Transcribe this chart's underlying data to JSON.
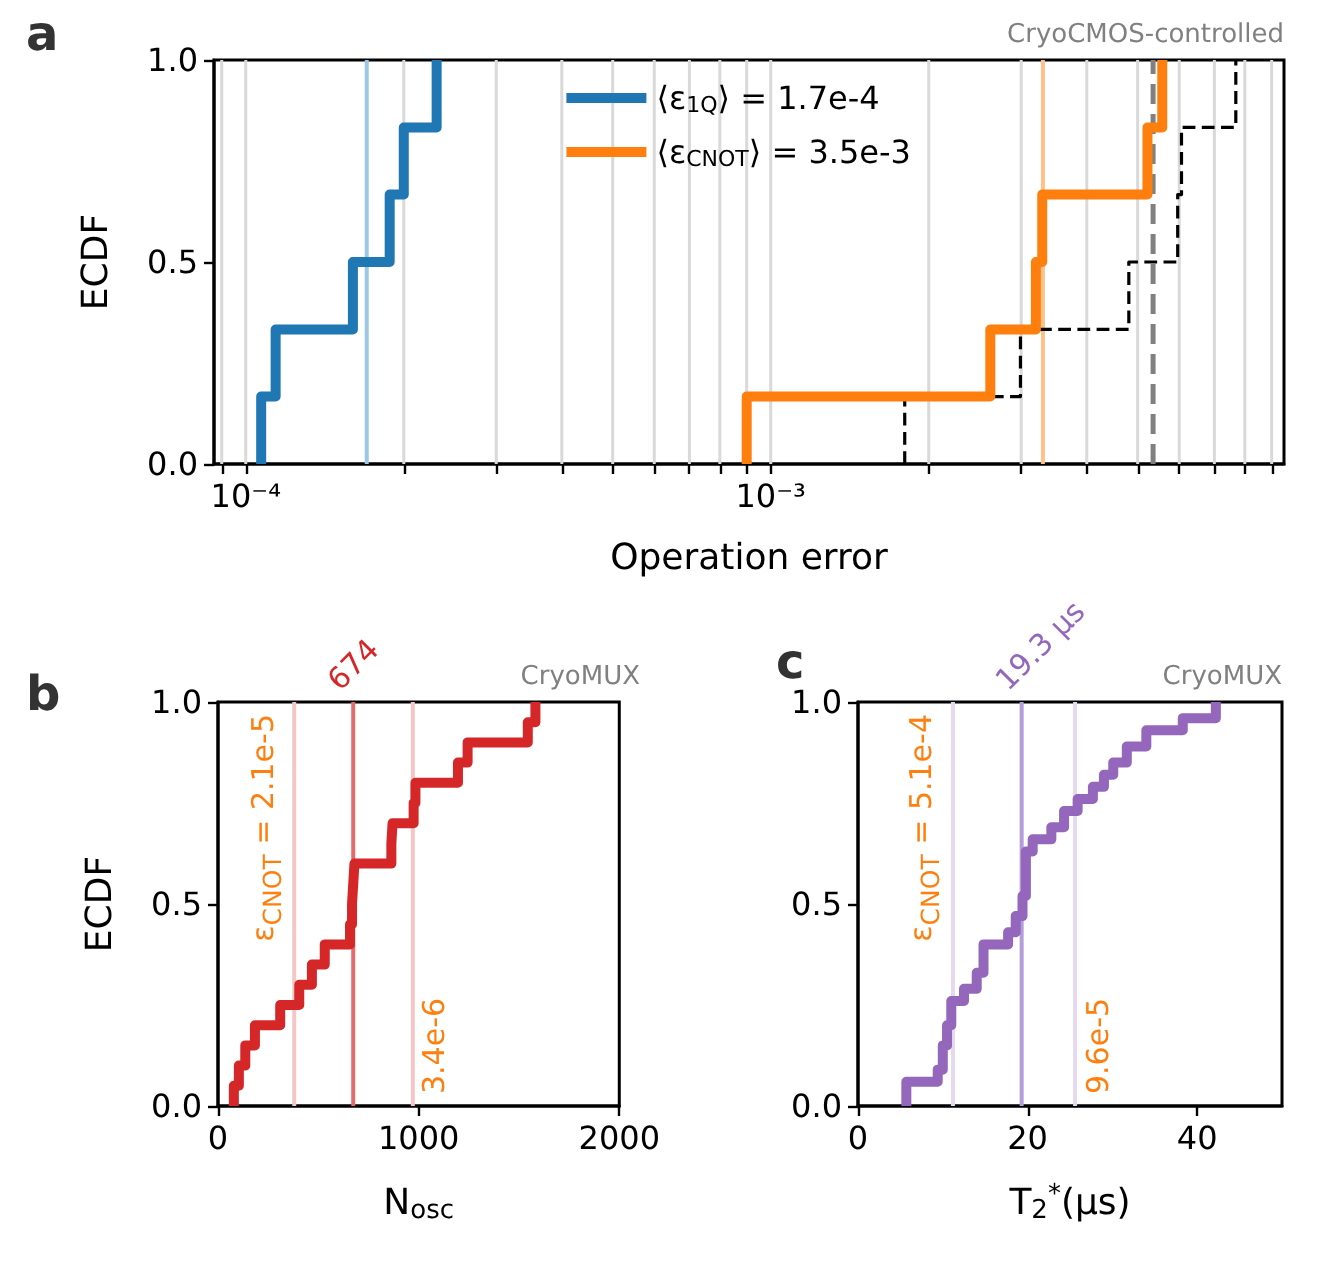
{
  "chart_data": [
    {
      "type": "step",
      "title": "a",
      "xlabel": "Operation error",
      "ylabel": "ECDF",
      "annotations": [
        "CryoCMOS-controlled"
      ],
      "log": "x",
      "xlim": [
        8.7e-05,
        0.0095
      ],
      "xticks": [
        {
          "value": 9e-05,
          "label": null
        },
        {
          "value": 0.0001,
          "label": "10⁻⁴"
        },
        {
          "value": 0.0002,
          "label": null
        },
        {
          "value": 0.0003,
          "label": null
        },
        {
          "value": 0.0004,
          "label": null
        },
        {
          "value": 0.0005,
          "label": null
        },
        {
          "value": 0.0006,
          "label": null
        },
        {
          "value": 0.0007,
          "label": null
        },
        {
          "value": 0.0008,
          "label": null
        },
        {
          "value": 0.0009,
          "label": null
        },
        {
          "value": 0.001,
          "label": "10⁻³"
        },
        {
          "value": 0.002,
          "label": null
        },
        {
          "value": 0.003,
          "label": null
        },
        {
          "value": 0.004,
          "label": null
        },
        {
          "value": 0.005,
          "label": null
        },
        {
          "value": 0.006,
          "label": null
        },
        {
          "value": 0.007,
          "label": null
        },
        {
          "value": 0.008,
          "label": null
        },
        {
          "value": 0.009,
          "label": null
        }
      ],
      "ylim": [
        0,
        1
      ],
      "yticks": [
        {
          "value": 0,
          "label": "0.0"
        },
        {
          "value": 0.5,
          "label": "0.5"
        },
        {
          "value": 1,
          "label": "1.0"
        }
      ],
      "grid": "x",
      "legend": "top",
      "marker": "none",
      "series": [
        {
          "name": "⟨ε$_{1Q}$⟩ = 1.7e-4",
          "color": "#1f77b4",
          "x": [
            0.000107,
            0.000107,
            0.000114,
            0.00016,
            0.000188,
            0.0002,
            0.000231
          ],
          "values": [
            0,
            0.167,
            0.333,
            0.5,
            0.667,
            0.833,
            1
          ]
        },
        {
          "name": "⟨ε$_{CNOT}$⟩ = 3.5e-3",
          "color": "#ff7f0e",
          "x": [
            0.0009,
            0.0009,
            0.00262,
            0.0032,
            0.00329,
            0.00522,
            0.00557
          ],
          "values": [
            0,
            0.167,
            0.333,
            0.5,
            0.667,
            0.833,
            1
          ]
        },
        {
          "color": "#000000",
          "line_style": "dashed",
          "x": [
            0.0018,
            0.0018,
            0.00299,
            0.00481,
            0.00596,
            0.00606,
            0.00769
          ],
          "values": [
            0,
            0.167,
            0.333,
            0.5,
            0.667,
            0.833,
            1
          ]
        }
      ],
      "ref_lines": [
        {
          "axis": "x",
          "value": 0.00017,
          "color": "#9cc7e6"
        },
        {
          "axis": "x",
          "value": 0.0033,
          "color": "#ffc189"
        },
        {
          "axis": "x",
          "value": 0.00535,
          "color": "#808080",
          "line_style": "dashed"
        }
      ]
    },
    {
      "type": "step",
      "title": "b",
      "xlabel": "N$_{osc}$",
      "ylabel": "ECDF",
      "annotations": [
        "CryoMUX",
        {
          "text": "ε$_{CNOT}$ = 2.1e-5",
          "x": 380,
          "y": 0.97
        },
        {
          "text": "3.4e-6",
          "x": 971,
          "y": 0.03
        }
      ],
      "xlim": [
        0,
        2000
      ],
      "xticks": [
        0,
        1000,
        2000
      ],
      "ylim": [
        0,
        1
      ],
      "yticks": [
        {
          "value": 0,
          "label": "0.0"
        },
        {
          "value": 0.5,
          "label": "0.5"
        },
        {
          "value": 1,
          "label": "1.0"
        }
      ],
      "marker": "none",
      "series": [
        {
          "color": "#d62728",
          "x": [
            79,
            79,
            104,
            136,
            184,
            310,
            405,
            468,
            532,
            658,
            668,
            674,
            680,
            864,
            870,
            975,
            984,
            1196,
            1244,
            1544,
            1582
          ],
          "values": [
            0,
            0.05,
            0.1,
            0.15,
            0.2,
            0.25,
            0.3,
            0.35,
            0.4,
            0.45,
            0.5,
            0.55,
            0.6,
            0.65,
            0.7,
            0.75,
            0.8,
            0.85,
            0.9,
            0.95,
            1
          ]
        }
      ],
      "ref_lines": [
        {
          "axis": "x",
          "value": 674,
          "label": "674",
          "color": "#e06c6d"
        },
        {
          "axis": "x",
          "value": 380,
          "color": "#f5c6c7"
        },
        {
          "axis": "x",
          "value": 971,
          "color": "#f5c6c7"
        }
      ]
    },
    {
      "type": "step",
      "title": "c",
      "xlabel": "T$_{2}$$^{*}$(μs)",
      "annotations": [
        "CryoMUX",
        {
          "text": "ε$_{CNOT}$ = 5.1e-4",
          "x": 11.2,
          "y": 0.97
        },
        {
          "text": "9.6e-5",
          "x": 25.6,
          "y": 0.03
        }
      ],
      "xlim": [
        0,
        50
      ],
      "xticks": [
        0,
        20,
        40
      ],
      "ylim": [
        0,
        1
      ],
      "yticks": [
        {
          "value": 0,
          "label": "0.0"
        },
        {
          "value": 0.5,
          "label": "0.5"
        },
        {
          "value": 1,
          "label": "1.0"
        }
      ],
      "marker": "none",
      "series": [
        {
          "color": "#9467bd",
          "x": [
            5.7,
            5.7,
            9.4,
            10.0,
            10.5,
            11.0,
            12.5,
            14.0,
            14.8,
            17.7,
            18.6,
            19.4,
            19.8,
            20.6,
            22.8,
            24.3,
            25.9,
            27.7,
            29.0,
            30.1,
            31.7,
            34.0,
            38.3,
            42.2
          ],
          "values": [
            0,
            0.06,
            0.09,
            0.15,
            0.2,
            0.26,
            0.29,
            0.33,
            0.4,
            0.43,
            0.47,
            0.52,
            0.63,
            0.66,
            0.69,
            0.73,
            0.76,
            0.79,
            0.82,
            0.85,
            0.89,
            0.93,
            0.96,
            1
          ]
        }
      ],
      "ref_lines": [
        {
          "axis": "x",
          "value": 19.3,
          "label": "19.3 μs",
          "color": "#b39ddb"
        },
        {
          "axis": "x",
          "value": 11.2,
          "color": "#e4d9ef"
        },
        {
          "axis": "x",
          "value": 25.6,
          "color": "#e4d9ef"
        }
      ]
    }
  ]
}
